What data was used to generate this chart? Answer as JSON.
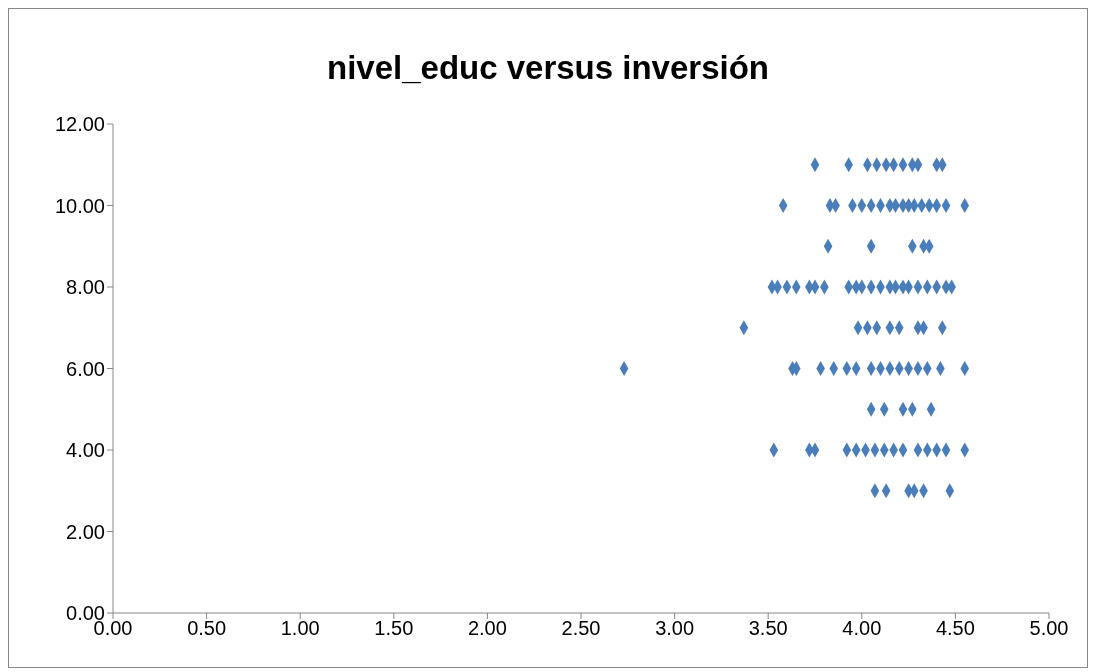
{
  "chart_data": {
    "type": "scatter",
    "title": "nivel_educ versus inversión",
    "marker": "diamond",
    "grid": false,
    "legend": false,
    "xlim": [
      0,
      5
    ],
    "ylim": [
      0,
      12
    ],
    "xticks": [
      {
        "value": 0,
        "label": "0.00"
      },
      {
        "value": 0.5,
        "label": "0.50"
      },
      {
        "value": 1,
        "label": "1.00"
      },
      {
        "value": 1.5,
        "label": "1.50"
      },
      {
        "value": 2,
        "label": "2.00"
      },
      {
        "value": 2.5,
        "label": "2.50"
      },
      {
        "value": 3,
        "label": "3.00"
      },
      {
        "value": 3.5,
        "label": "3.50"
      },
      {
        "value": 4,
        "label": "4.00"
      },
      {
        "value": 4.5,
        "label": "4.50"
      },
      {
        "value": 5,
        "label": "5.00"
      }
    ],
    "yticks": [
      {
        "value": 0,
        "label": "0.00"
      },
      {
        "value": 2,
        "label": "2.00"
      },
      {
        "value": 4,
        "label": "4.00"
      },
      {
        "value": 6,
        "label": "6.00"
      },
      {
        "value": 8,
        "label": "8.00"
      },
      {
        "value": 10,
        "label": "10.00"
      },
      {
        "value": 12,
        "label": "12.00"
      }
    ],
    "series": [
      {
        "color": "#4a7ebb",
        "x": [
          3.75,
          3.93,
          4.03,
          4.08,
          4.13,
          4.17,
          4.22,
          4.27,
          4.3,
          4.4,
          4.43,
          3.58,
          3.83,
          3.86,
          3.95,
          4.0,
          4.05,
          4.1,
          4.15,
          4.18,
          4.22,
          4.25,
          4.28,
          4.32,
          4.36,
          4.4,
          4.45,
          4.55,
          3.82,
          4.05,
          4.27,
          4.33,
          4.36,
          3.52,
          3.55,
          3.6,
          3.65,
          3.72,
          3.75,
          3.8,
          3.93,
          3.97,
          4.0,
          4.05,
          4.1,
          4.15,
          4.18,
          4.22,
          4.25,
          4.3,
          4.35,
          4.4,
          4.45,
          4.48,
          3.37,
          3.98,
          4.03,
          4.08,
          4.15,
          4.2,
          4.3,
          4.33,
          4.43,
          2.73,
          3.63,
          3.65,
          3.78,
          3.85,
          3.92,
          3.97,
          4.05,
          4.1,
          4.15,
          4.2,
          4.25,
          4.3,
          4.35,
          4.42,
          4.55,
          4.05,
          4.12,
          4.22,
          4.27,
          4.37,
          3.53,
          3.72,
          3.75,
          3.92,
          3.97,
          4.02,
          4.07,
          4.12,
          4.17,
          4.22,
          4.3,
          4.35,
          4.4,
          4.45,
          4.55,
          4.07,
          4.13,
          4.25,
          4.28,
          4.33,
          4.47
        ],
        "values": [
          11,
          11,
          11,
          11,
          11,
          11,
          11,
          11,
          11,
          11,
          11,
          10,
          10,
          10,
          10,
          10,
          10,
          10,
          10,
          10,
          10,
          10,
          10,
          10,
          10,
          10,
          10,
          10,
          9,
          9,
          9,
          9,
          9,
          8,
          8,
          8,
          8,
          8,
          8,
          8,
          8,
          8,
          8,
          8,
          8,
          8,
          8,
          8,
          8,
          8,
          8,
          8,
          8,
          8,
          7,
          7,
          7,
          7,
          7,
          7,
          7,
          7,
          7,
          6,
          6,
          6,
          6,
          6,
          6,
          6,
          6,
          6,
          6,
          6,
          6,
          6,
          6,
          6,
          6,
          5,
          5,
          5,
          5,
          5,
          4,
          4,
          4,
          4,
          4,
          4,
          4,
          4,
          4,
          4,
          4,
          4,
          4,
          4,
          4,
          3,
          3,
          3,
          3,
          3,
          3
        ]
      }
    ]
  }
}
